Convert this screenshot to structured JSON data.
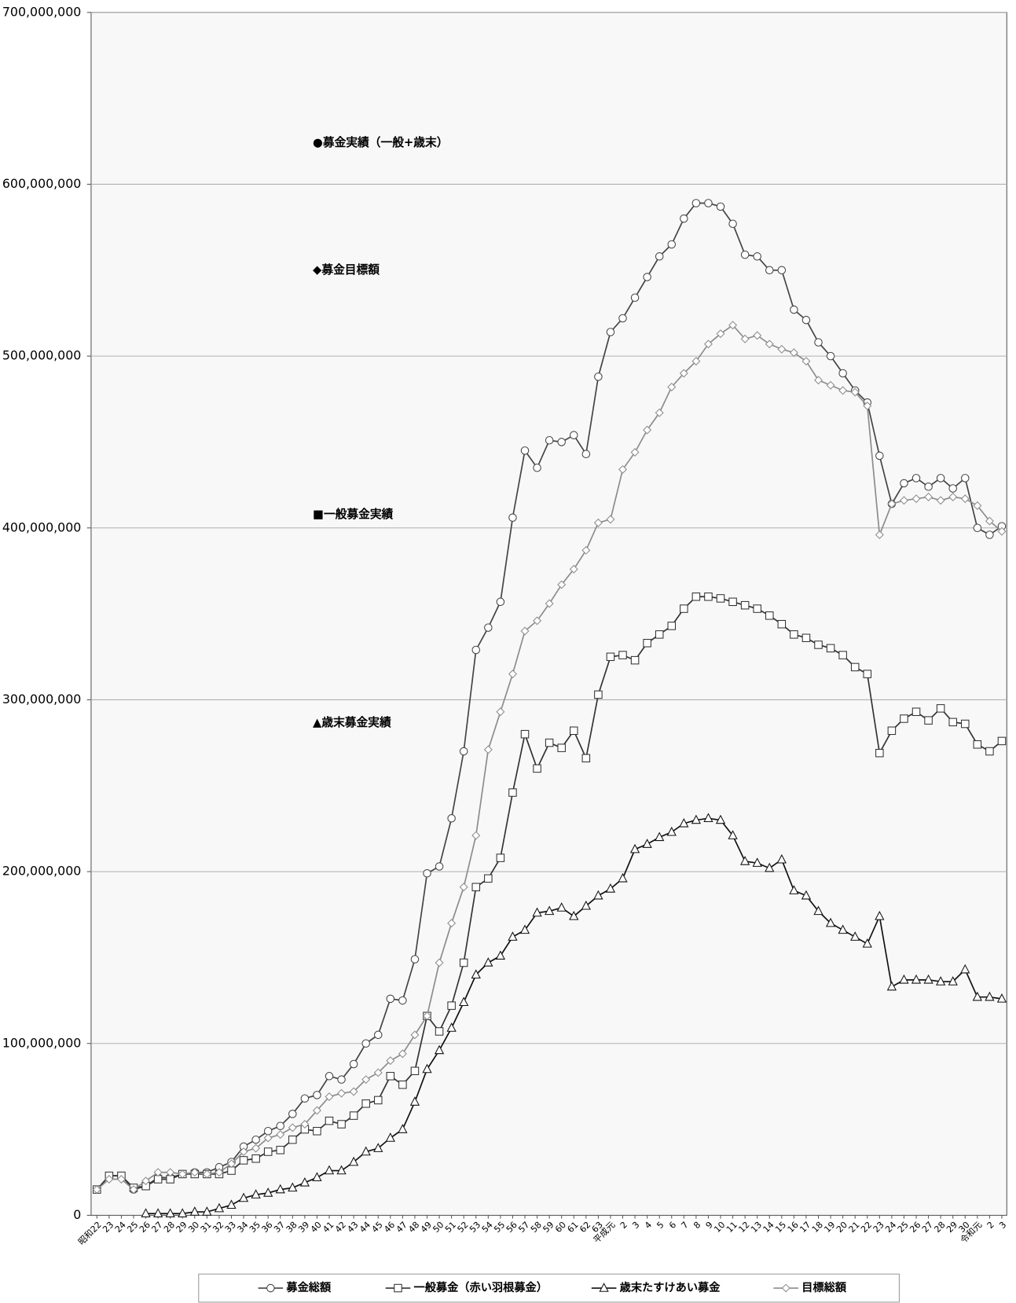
{
  "chart_data": {
    "type": "line",
    "categories": [
      "昭和22",
      "23",
      "24",
      "25",
      "26",
      "27",
      "28",
      "29",
      "30",
      "31",
      "32",
      "33",
      "34",
      "35",
      "36",
      "37",
      "38",
      "39",
      "40",
      "41",
      "42",
      "43",
      "44",
      "45",
      "46",
      "47",
      "48",
      "49",
      "50",
      "51",
      "52",
      "53",
      "54",
      "55",
      "56",
      "57",
      "58",
      "59",
      "60",
      "61",
      "62",
      "63",
      "平成元",
      "2",
      "3",
      "4",
      "5",
      "6",
      "7",
      "8",
      "9",
      "10",
      "11",
      "12",
      "13",
      "14",
      "15",
      "16",
      "17",
      "18",
      "19",
      "20",
      "21",
      "22",
      "23",
      "24",
      "25",
      "26",
      "27",
      "28",
      "29",
      "30",
      "令和元",
      "2",
      "3"
    ],
    "series": [
      {
        "name": "募金総額",
        "color": "#444444",
        "marker": "circle",
        "values": [
          15000000,
          23000000,
          23000000,
          15000000,
          17000000,
          22000000,
          22000000,
          24000000,
          25000000,
          25000000,
          28000000,
          31000000,
          40000000,
          44000000,
          49000000,
          52000000,
          59000000,
          68000000,
          70000000,
          81000000,
          79000000,
          88000000,
          100000000,
          105000000,
          126000000,
          125000000,
          149000000,
          199000000,
          203000000,
          231000000,
          270000000,
          329000000,
          342000000,
          357000000,
          406000000,
          445000000,
          435000000,
          451000000,
          450000000,
          454000000,
          443000000,
          488000000,
          514000000,
          522000000,
          534000000,
          546000000,
          558000000,
          565000000,
          580000000,
          589000000,
          589000000,
          587000000,
          577000000,
          559000000,
          558000000,
          550000000,
          550000000,
          527000000,
          521000000,
          508000000,
          500000000,
          490000000,
          480000000,
          473000000,
          442000000,
          414000000,
          426000000,
          429000000,
          424000000,
          429000000,
          423000000,
          429000000,
          400000000,
          396000000,
          401000000
        ]
      },
      {
        "name": "一般募金（赤い羽根募金）",
        "color": "#333333",
        "marker": "square",
        "values": [
          15000000,
          23000000,
          23000000,
          16000000,
          17000000,
          21000000,
          21000000,
          24000000,
          24000000,
          24000000,
          24000000,
          26000000,
          32000000,
          33000000,
          37000000,
          38000000,
          44000000,
          50000000,
          49000000,
          55000000,
          53000000,
          58000000,
          65000000,
          67000000,
          81000000,
          76000000,
          84000000,
          116000000,
          107000000,
          122000000,
          147000000,
          191000000,
          196000000,
          208000000,
          246000000,
          280000000,
          260000000,
          275000000,
          272000000,
          282000000,
          266000000,
          303000000,
          325000000,
          326000000,
          323000000,
          333000000,
          338000000,
          343000000,
          353000000,
          360000000,
          360000000,
          359000000,
          357000000,
          355000000,
          353000000,
          349000000,
          344000000,
          338000000,
          336000000,
          332000000,
          330000000,
          326000000,
          319000000,
          315000000,
          269000000,
          282000000,
          289000000,
          293000000,
          288000000,
          295000000,
          287000000,
          286000000,
          274000000,
          270000000,
          276000000
        ]
      },
      {
        "name": "歳末たすけあい募金",
        "color": "#111111",
        "marker": "triangle",
        "values": [
          null,
          null,
          null,
          null,
          1000000,
          1000000,
          1000000,
          1000000,
          2000000,
          2000000,
          4000000,
          6000000,
          10000000,
          12000000,
          13000000,
          15000000,
          16000000,
          19000000,
          22000000,
          26000000,
          26000000,
          31000000,
          37000000,
          39000000,
          45000000,
          50000000,
          66000000,
          85000000,
          96000000,
          109000000,
          124000000,
          140000000,
          147000000,
          151000000,
          162000000,
          166000000,
          176000000,
          177000000,
          179000000,
          174000000,
          180000000,
          186000000,
          190000000,
          196000000,
          213000000,
          216000000,
          220000000,
          223000000,
          228000000,
          230000000,
          231000000,
          230000000,
          221000000,
          206000000,
          205000000,
          202000000,
          207000000,
          189000000,
          186000000,
          177000000,
          170000000,
          166000000,
          162000000,
          158000000,
          174000000,
          133000000,
          137000000,
          137000000,
          137000000,
          136000000,
          136000000,
          143000000,
          127000000,
          127000000,
          126000000
        ]
      },
      {
        "name": "目標総額",
        "color": "#8c8c8c",
        "marker": "diamond",
        "values": [
          15000000,
          21000000,
          21000000,
          15000000,
          20000000,
          25000000,
          25000000,
          24000000,
          25000000,
          24000000,
          25000000,
          30000000,
          37000000,
          39000000,
          45000000,
          47000000,
          51000000,
          53000000,
          61000000,
          69000000,
          71000000,
          72000000,
          79000000,
          83000000,
          90000000,
          94000000,
          105000000,
          116000000,
          147000000,
          170000000,
          191000000,
          221000000,
          271000000,
          293000000,
          315000000,
          340000000,
          346000000,
          356000000,
          367000000,
          376000000,
          387000000,
          403000000,
          405000000,
          434000000,
          444000000,
          457000000,
          467000000,
          482000000,
          490000000,
          497000000,
          507000000,
          513000000,
          518000000,
          510000000,
          512000000,
          507000000,
          504000000,
          502000000,
          497000000,
          486000000,
          483000000,
          480000000,
          479000000,
          471000000,
          396000000,
          414000000,
          416000000,
          417000000,
          418000000,
          416000000,
          418000000,
          417000000,
          413000000,
          404000000,
          398000000
        ]
      }
    ],
    "ylim": [
      0,
      700000000
    ],
    "yticks": [
      0,
      {
        "value": 100000000,
        "label": "100,000,000"
      },
      {
        "value": 200000000,
        "label": "200,000,000"
      },
      {
        "value": 300000000,
        "label": "300,000,000"
      },
      {
        "value": 400000000,
        "label": "400,000,000"
      },
      {
        "value": 500000000,
        "label": "500,000,000"
      },
      {
        "value": 600000000,
        "label": "600,000,000"
      },
      {
        "value": 700000000,
        "label": "700,000,000"
      }
    ],
    "grid": true,
    "annotations": [
      "●募金実績（一般+歳末）",
      "◆募金目標額",
      "■一般募金実績",
      "▲歳末募金実績"
    ],
    "legend": "bottom"
  }
}
